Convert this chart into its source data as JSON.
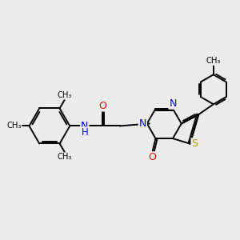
{
  "bg_color": "#ebebeb",
  "bond_color": "#000000",
  "bond_width": 1.4,
  "font_size": 8.5,
  "fig_size": [
    3.0,
    3.0
  ],
  "dpi": 100,
  "xlim": [
    0,
    10
  ],
  "ylim": [
    0,
    10
  ]
}
